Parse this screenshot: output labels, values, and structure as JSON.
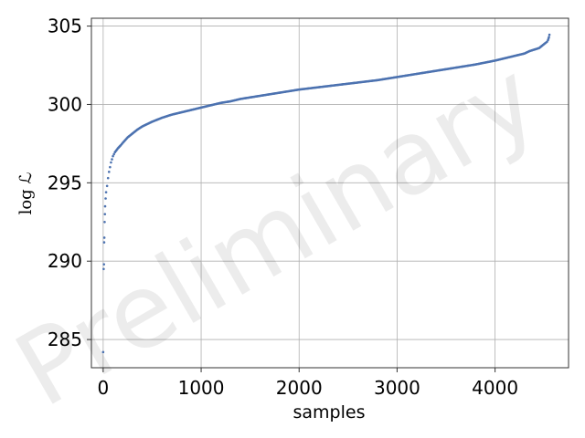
{
  "chart_data": {
    "type": "scatter",
    "xlabel": "samples",
    "ylabel": "log ℒ",
    "watermark": "Preliminary",
    "xlim": [
      -120,
      4750
    ],
    "ylim": [
      283.2,
      305.5
    ],
    "xticks": [
      0,
      1000,
      2000,
      3000,
      4000
    ],
    "yticks": [
      285,
      290,
      295,
      300,
      305
    ],
    "grid": true,
    "point_color": "#4c72b0",
    "series": [
      {
        "x": [
          0,
          5,
          8,
          10,
          12,
          15,
          18,
          20,
          25,
          30,
          40,
          50,
          60,
          70,
          80,
          100,
          120,
          150,
          180,
          200,
          250,
          300,
          350,
          400,
          450,
          500,
          600,
          700,
          800,
          900,
          1000,
          1100,
          1200,
          1300,
          1400,
          1500,
          1600,
          1700,
          1800,
          1900,
          2000,
          2200,
          2400,
          2600,
          2800,
          3000,
          3200,
          3400,
          3600,
          3800,
          4000,
          4100,
          4200,
          4300,
          4350,
          4400,
          4450,
          4480,
          4500,
          4520,
          4530,
          4540,
          4545,
          4550,
          4555
        ],
        "y": [
          284.2,
          289.5,
          289.8,
          291.2,
          291.5,
          292.5,
          293.0,
          293.5,
          294.0,
          294.4,
          294.8,
          295.3,
          295.7,
          296.0,
          296.3,
          296.7,
          296.95,
          297.2,
          297.4,
          297.55,
          297.9,
          298.15,
          298.4,
          298.6,
          298.75,
          298.9,
          299.15,
          299.35,
          299.5,
          299.65,
          299.8,
          299.95,
          300.1,
          300.2,
          300.35,
          300.45,
          300.55,
          300.65,
          300.75,
          300.85,
          300.95,
          301.1,
          301.25,
          301.4,
          301.55,
          301.75,
          301.95,
          302.15,
          302.35,
          302.55,
          302.8,
          302.95,
          303.1,
          303.25,
          303.4,
          303.5,
          303.6,
          303.75,
          303.85,
          303.95,
          304.0,
          304.1,
          304.2,
          304.3,
          304.45
        ]
      }
    ]
  }
}
